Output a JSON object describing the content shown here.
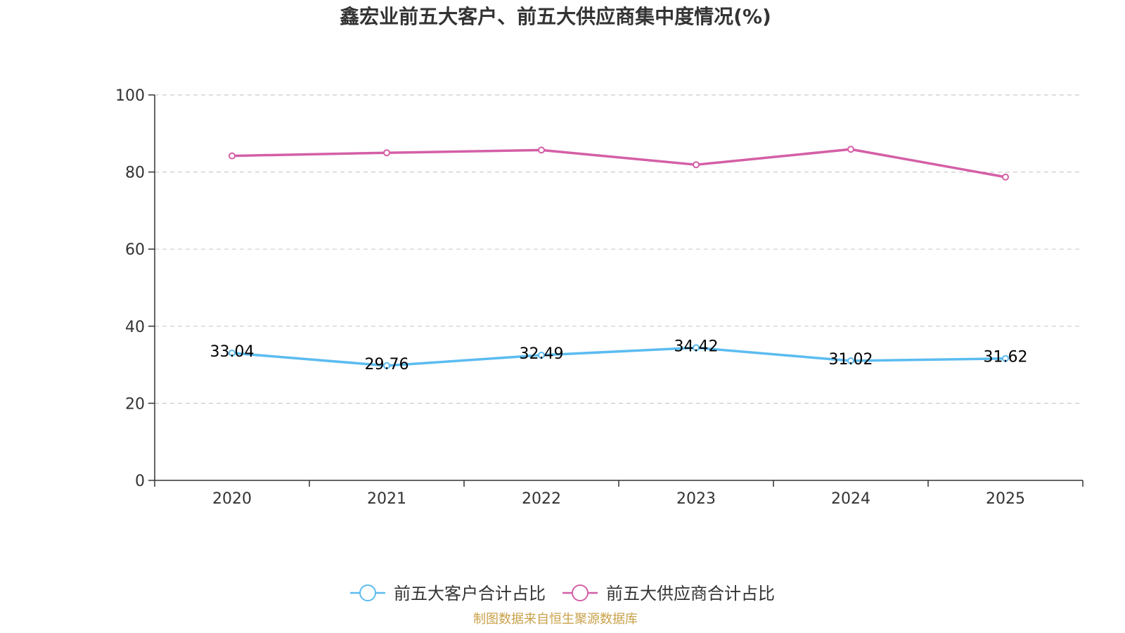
{
  "chart_data": {
    "type": "line",
    "title": "鑫宏业前五大客户、前五大供应商集中度情况(%)",
    "categories": [
      "2020",
      "2021",
      "2022",
      "2023",
      "2024",
      "2025"
    ],
    "ylim": [
      0,
      100
    ],
    "yticks": [
      0,
      20,
      40,
      60,
      80,
      100
    ],
    "grid": true,
    "legend_position": "bottom-center",
    "series": [
      {
        "name": "前五大客户合计占比",
        "color": "#5bbcf0",
        "values": [
          33.04,
          29.76,
          32.49,
          34.42,
          31.02,
          31.62
        ],
        "labels": [
          "33.04",
          "29.76",
          "32.49",
          "34.42",
          "31.02",
          "31.62"
        ]
      },
      {
        "name": "前五大供应商合计占比",
        "color": "#d45fa6",
        "values": [
          84.2,
          85.0,
          85.7,
          81.9,
          85.9,
          78.7
        ]
      }
    ]
  },
  "source": "制图数据来自恒生聚源数据库"
}
